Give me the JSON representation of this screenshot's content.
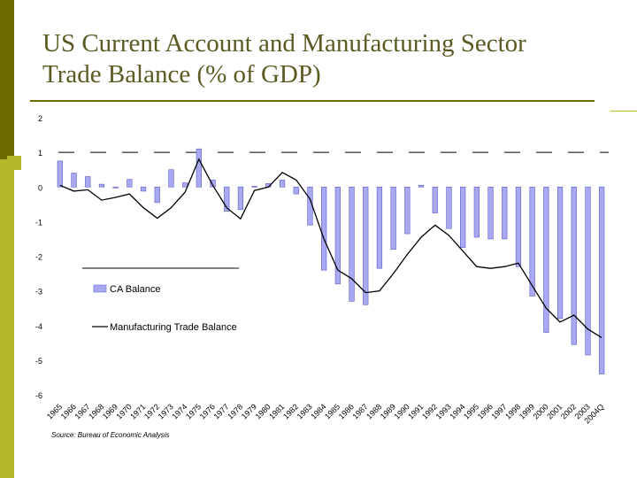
{
  "title_line1": "US Current Account and Manufacturing Sector",
  "title_line2": "Trade Balance (% of GDP)",
  "chart_data": {
    "type": "bar",
    "title": "US Current Account and Manufacturing Sector Trade Balance (% of GDP)",
    "ylim": [
      -6,
      2
    ],
    "yticks": [
      "2",
      "1",
      "0",
      "-1",
      "-2",
      "-3",
      "-4",
      "-5",
      "-6"
    ],
    "ytick_values": [
      2,
      1,
      0,
      -1,
      -2,
      -3,
      -4,
      -5,
      -6
    ],
    "categories": [
      "1965",
      "1966",
      "1967",
      "1968",
      "1969",
      "1970",
      "1971",
      "1972",
      "1973",
      "1974",
      "1975",
      "1976",
      "1977",
      "1978",
      "1979",
      "1980",
      "1981",
      "1982",
      "1983",
      "1984",
      "1985",
      "1986",
      "1987",
      "1988",
      "1989",
      "1990",
      "1991",
      "1992",
      "1993",
      "1994",
      "1995",
      "1996",
      "1997",
      "1998",
      "1999",
      "2000",
      "2001",
      "2002",
      "2003",
      "2004Q"
    ],
    "series": [
      {
        "name": "CA Balance",
        "kind": "bar",
        "color": "#a9a9f2",
        "values": [
          0.75,
          0.4,
          0.3,
          0.08,
          0.0,
          0.22,
          -0.12,
          -0.45,
          0.5,
          0.12,
          1.1,
          0.2,
          -0.7,
          -0.65,
          0.02,
          0.1,
          0.2,
          -0.2,
          -1.1,
          -2.4,
          -2.8,
          -3.3,
          -3.4,
          -2.35,
          -1.8,
          -1.35,
          0.05,
          -0.75,
          -1.2,
          -1.75,
          -1.45,
          -1.5,
          -1.5,
          -2.3,
          -3.15,
          -4.2,
          -3.8,
          -4.55,
          -4.85,
          -5.4
        ]
      },
      {
        "name": "Manufacturing Trade Balance",
        "kind": "line",
        "color": "#000000",
        "values": [
          0.05,
          -0.12,
          -0.08,
          -0.38,
          -0.3,
          -0.2,
          -0.6,
          -0.9,
          -0.6,
          -0.15,
          0.8,
          0.05,
          -0.6,
          -0.92,
          -0.1,
          0.0,
          0.42,
          0.2,
          -0.35,
          -1.5,
          -2.4,
          -2.65,
          -3.05,
          -3.0,
          -2.5,
          -1.95,
          -1.45,
          -1.1,
          -1.4,
          -1.85,
          -2.3,
          -2.35,
          -2.3,
          -2.2,
          -2.85,
          -3.5,
          -3.9,
          -3.7,
          -4.1,
          -4.35
        ]
      }
    ],
    "reference_lines": [
      1
    ],
    "legend_placement": "center-left",
    "source": "Source: Bureau of Economic Analysis"
  },
  "colors": {
    "accent_dark": "#6b6b00",
    "accent_light": "#b7b72e",
    "title_text": "#5a5a22"
  }
}
